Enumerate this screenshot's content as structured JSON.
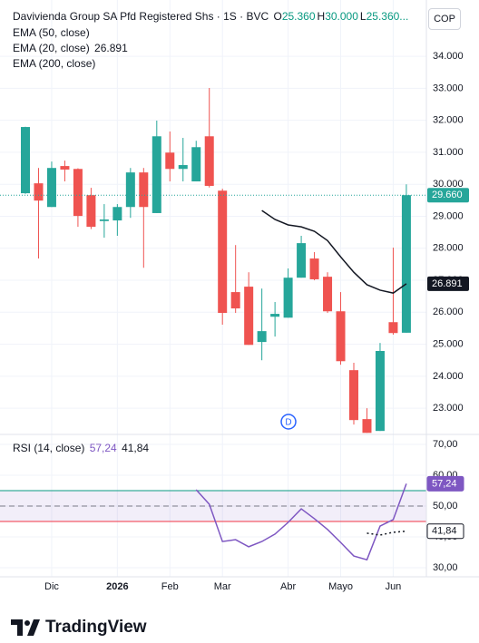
{
  "chart_data": [
    {
      "type": "candlestick",
      "title": "Davivienda Group SA Pfd Registered Shs · 1S · BVC",
      "ohlc_legend": [
        {
          "key": "O",
          "value": "25.360"
        },
        {
          "key": "H",
          "value": "30.000"
        },
        {
          "key": "L",
          "value": "25.360..."
        }
      ],
      "other_studies": [
        "EMA (50, close)",
        "EMA (200, close)"
      ],
      "currency": "COP",
      "annotation": "D",
      "open": [
        29.72,
        30.03,
        29.29,
        30.57,
        30.48,
        29.66,
        28.85,
        28.87,
        29.29,
        30.37,
        29.1,
        30.99,
        30.48,
        30.09,
        31.5,
        29.8,
        26.63,
        26.8,
        25.07,
        25.86,
        25.83,
        27.08,
        27.68,
        27.11,
        26.03,
        24.19,
        22.66,
        22.29,
        25.69,
        25.36
      ],
      "high": [
        31.8,
        30.51,
        30.71,
        30.74,
        30.5,
        29.89,
        29.38,
        29.38,
        30.51,
        30.51,
        31.99,
        31.65,
        31.45,
        31.36,
        33.01,
        29.86,
        28.1,
        27.25,
        26.74,
        26.32,
        27.37,
        28.39,
        27.88,
        27.25,
        26.63,
        24.42,
        23.0,
        25.04,
        28.02,
        30.0
      ],
      "low": [
        29.7,
        27.68,
        29.29,
        30.09,
        28.67,
        28.6,
        28.33,
        28.39,
        28.95,
        27.39,
        29.1,
        30.09,
        30.09,
        30.09,
        29.9,
        25.61,
        25.98,
        24.98,
        24.5,
        25.24,
        25.83,
        27.08,
        27.0,
        25.98,
        24.36,
        22.49,
        22.23,
        22.29,
        25.3,
        25.36
      ],
      "close": [
        31.79,
        29.49,
        30.51,
        30.46,
        29.01,
        28.67,
        28.9,
        29.29,
        30.37,
        29.29,
        31.5,
        30.48,
        30.6,
        31.16,
        29.95,
        25.98,
        26.12,
        24.98,
        25.41,
        25.95,
        27.08,
        28.16,
        27.03,
        26.03,
        24.47,
        22.63,
        22.23,
        24.79,
        25.35,
        29.66
      ],
      "close_label": "29.660",
      "up_color": "#26a69a",
      "down_color": "#ef5350",
      "series": [
        {
          "name": "EMA (20, close)",
          "color": "#131722",
          "values": [
            null,
            null,
            null,
            null,
            null,
            null,
            null,
            null,
            null,
            null,
            null,
            null,
            null,
            null,
            null,
            null,
            null,
            null,
            29.18,
            28.9,
            28.73,
            28.67,
            28.53,
            28.24,
            27.73,
            27.25,
            26.86,
            26.69,
            26.6,
            26.891
          ]
        }
      ],
      "ylim": [
        22.21,
        35.76
      ],
      "yticks": [
        {
          "value": 23,
          "label": "23.000"
        },
        {
          "value": 24,
          "label": "24.000"
        },
        {
          "value": 25,
          "label": "25.000"
        },
        {
          "value": 26,
          "label": "26.000"
        },
        {
          "value": 27,
          "label": "27.000"
        },
        {
          "value": 28,
          "label": "28.000"
        },
        {
          "value": 29,
          "label": "29.000"
        },
        {
          "value": 30,
          "label": "30.000"
        },
        {
          "value": 31,
          "label": "31.000"
        },
        {
          "value": 32,
          "label": "32.000"
        },
        {
          "value": 33,
          "label": "33.000"
        },
        {
          "value": 34,
          "label": "34.000"
        }
      ],
      "grid": true
    },
    {
      "type": "line",
      "title": "RSI (14, close)",
      "categories": [
        null,
        null,
        "Dic",
        null,
        null,
        null,
        null,
        "2026",
        null,
        null,
        null,
        "Feb",
        null,
        null,
        null,
        "Mar",
        null,
        null,
        null,
        null,
        "Abr",
        null,
        null,
        null,
        "Mayo",
        null,
        null,
        null,
        "Jun",
        null
      ],
      "series": [
        {
          "color": "#7e57c2",
          "value_label": "57,24",
          "values": [
            null,
            null,
            null,
            null,
            null,
            null,
            null,
            null,
            null,
            null,
            null,
            null,
            null,
            55.3,
            50.6,
            38.5,
            39.1,
            36.8,
            38.5,
            40.9,
            44.7,
            49.1,
            45.9,
            42.4,
            38.2,
            33.8,
            32.6,
            43.5,
            45.6,
            57.24
          ]
        },
        {
          "color": "#131722",
          "value_label": "41,84",
          "dashed": true,
          "values": [
            null,
            null,
            null,
            null,
            null,
            null,
            null,
            null,
            null,
            null,
            null,
            null,
            null,
            null,
            null,
            null,
            null,
            null,
            null,
            null,
            null,
            null,
            null,
            null,
            null,
            null,
            41.2,
            40.6,
            41.5,
            41.84
          ]
        }
      ],
      "bands": {
        "upper": 55,
        "middle": 50,
        "lower": 45,
        "upper_color": "#089981",
        "lower_color": "#f23645",
        "fill": "#7e57c2"
      },
      "ylim": [
        27.06,
        72.94
      ],
      "yticks": [
        {
          "value": 30,
          "label": "30,00"
        },
        {
          "value": 40,
          "label": "40,00"
        },
        {
          "value": 50,
          "label": "50,00"
        },
        {
          "value": 60,
          "label": "60,00"
        },
        {
          "value": 70,
          "label": "70,00"
        }
      ],
      "grid": true
    }
  ]
}
